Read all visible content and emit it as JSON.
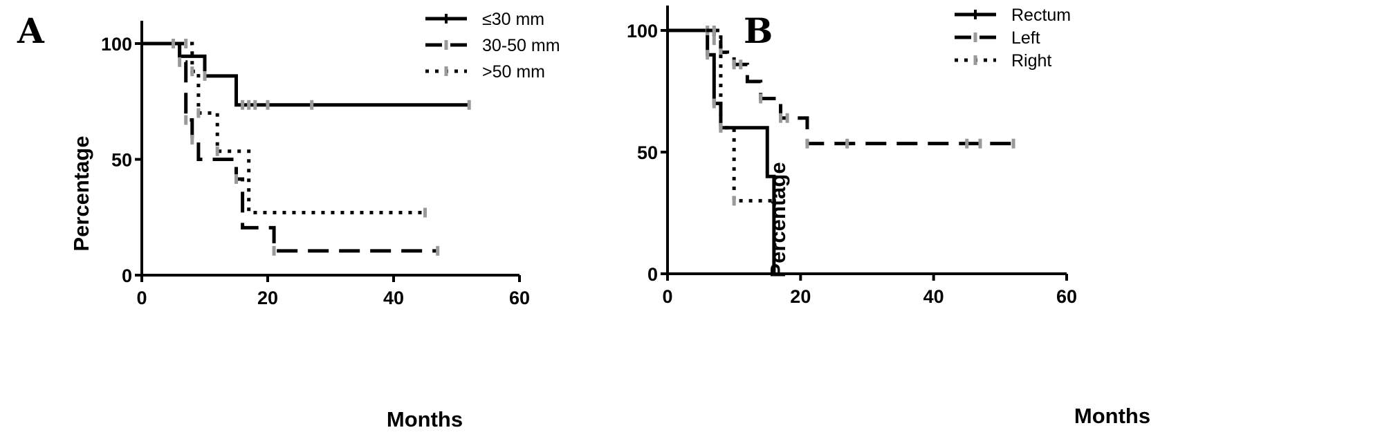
{
  "chart_data": [
    {
      "type": "line",
      "step": true,
      "panel_label": "A",
      "xlabel": "Months",
      "ylabel": "Percentage",
      "xlim": [
        0,
        60
      ],
      "ylim": [
        0,
        100
      ],
      "xticks": [
        0,
        20,
        40,
        60
      ],
      "yticks": [
        0,
        50,
        100
      ],
      "legend_position": "top-right",
      "series": [
        {
          "name": "≤30 mm",
          "style": "solid",
          "steps": [
            [
              0,
              100
            ],
            [
              6,
              94.5
            ],
            [
              10,
              86
            ],
            [
              15,
              73.5
            ],
            [
              52,
              73.5
            ]
          ],
          "censored": [
            [
              10,
              86
            ],
            [
              16,
              73.5
            ],
            [
              17,
              73.5
            ],
            [
              18,
              73.5
            ],
            [
              20,
              73.5
            ],
            [
              27,
              73.5
            ],
            [
              52,
              73.5
            ]
          ]
        },
        {
          "name": "30-50 mm",
          "style": "dashed",
          "steps": [
            [
              0,
              100
            ],
            [
              6,
              92
            ],
            [
              7,
              67
            ],
            [
              8,
              58.5
            ],
            [
              9,
              50
            ],
            [
              15,
              41.5
            ],
            [
              16,
              20.5
            ],
            [
              21,
              10.5
            ],
            [
              47,
              10.5
            ]
          ],
          "censored": [
            [
              6,
              92
            ],
            [
              7,
              67
            ],
            [
              8,
              58.5
            ],
            [
              15,
              41.5
            ],
            [
              21,
              10.5
            ],
            [
              47,
              10.5
            ]
          ]
        },
        {
          "name": ">50 mm",
          "style": "dotted",
          "steps": [
            [
              0,
              100
            ],
            [
              7,
              100
            ],
            [
              8,
              88
            ],
            [
              9,
              70
            ],
            [
              12,
              53.5
            ],
            [
              17,
              27
            ],
            [
              45,
              27
            ]
          ],
          "censored": [
            [
              5,
              100
            ],
            [
              7,
              100
            ],
            [
              8,
              88
            ],
            [
              9,
              70
            ],
            [
              12,
              53.5
            ],
            [
              45,
              27
            ]
          ]
        }
      ]
    },
    {
      "type": "line",
      "step": true,
      "panel_label": "B",
      "xlabel": "Months",
      "ylabel": "Percentage",
      "xlim": [
        0,
        60
      ],
      "ylim": [
        0,
        100
      ],
      "xticks": [
        0,
        20,
        40,
        60
      ],
      "yticks": [
        0,
        50,
        100
      ],
      "legend_position": "top-right",
      "series": [
        {
          "name": "Rectum",
          "style": "solid",
          "steps": [
            [
              0,
              100
            ],
            [
              6,
              90
            ],
            [
              7,
              70
            ],
            [
              8,
              60
            ],
            [
              15,
              40
            ],
            [
              16,
              0
            ]
          ],
          "censored": [
            [
              6,
              90
            ],
            [
              7,
              70
            ],
            [
              8,
              60
            ]
          ]
        },
        {
          "name": "Left",
          "style": "dashed",
          "steps": [
            [
              0,
              100
            ],
            [
              7,
              96
            ],
            [
              8,
              91
            ],
            [
              9,
              90
            ],
            [
              10,
              86
            ],
            [
              12,
              79
            ],
            [
              14,
              72
            ],
            [
              17,
              64
            ],
            [
              21,
              53.5
            ],
            [
              52,
              53.5
            ]
          ],
          "censored": [
            [
              6,
              100
            ],
            [
              7,
              96
            ],
            [
              8,
              91
            ],
            [
              10,
              86
            ],
            [
              11,
              86
            ],
            [
              14,
              72
            ],
            [
              17,
              64
            ],
            [
              18,
              64
            ],
            [
              21,
              53.5
            ],
            [
              27,
              53.5
            ],
            [
              45,
              53.5
            ],
            [
              47,
              53.5
            ],
            [
              52,
              53.5
            ]
          ]
        },
        {
          "name": "Right",
          "style": "dotted",
          "steps": [
            [
              0,
              100
            ],
            [
              7,
              100
            ],
            [
              8,
              60
            ],
            [
              10,
              30
            ],
            [
              16,
              30
            ]
          ],
          "censored": [
            [
              7,
              100
            ],
            [
              8,
              60
            ],
            [
              10,
              30
            ]
          ]
        }
      ]
    }
  ]
}
